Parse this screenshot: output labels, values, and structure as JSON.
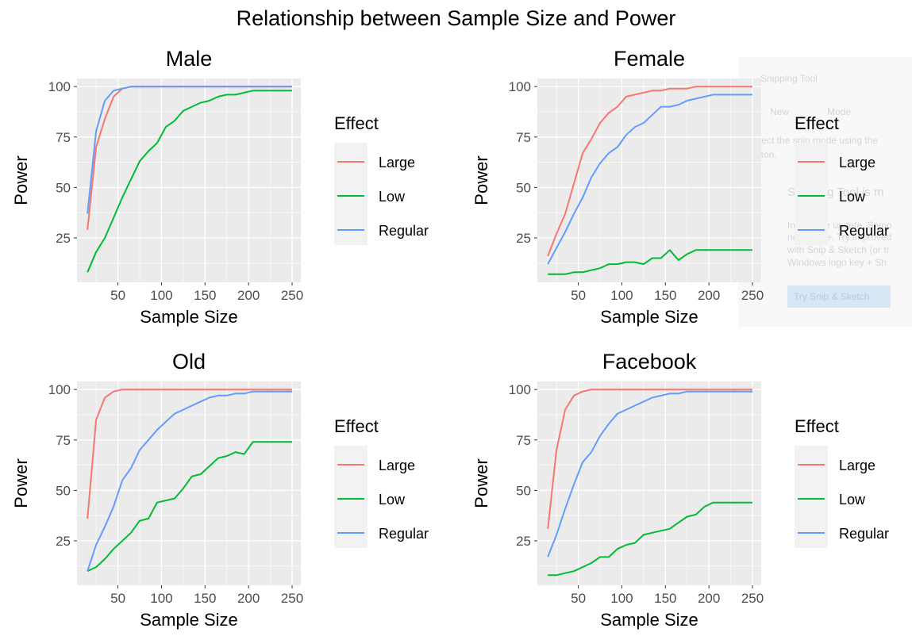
{
  "title": "Relationship between Sample Size and Power",
  "background_window": {
    "app_name": "Snipping Tool",
    "new_label": "New",
    "mode_label": "Mode",
    "line1": "Select the snip mode using the",
    "line2": "button.",
    "heading": "Snipping Tool is m",
    "body1": "In a future update, Snipp",
    "body2": "new home. Try improved",
    "body3": "with Snip & Sketch (or tr",
    "body4": "Windows logo key + Sh",
    "button_label": "Try Snip & Sketch"
  },
  "colors": {
    "Large": "#F8766D",
    "Low": "#00BA38",
    "Regular": "#619CFF"
  },
  "chart_data": [
    {
      "type": "line",
      "title": "Male",
      "xlabel": "Sample Size",
      "ylabel": "Power",
      "xlim": [
        3,
        260
      ],
      "ylim": [
        3,
        104
      ],
      "xticks": [
        50,
        100,
        150,
        200,
        250
      ],
      "yticks": [
        25,
        50,
        75,
        100
      ],
      "grid": true,
      "legend": {
        "title": "Effect",
        "position": "right"
      },
      "x": [
        15,
        25,
        35,
        45,
        55,
        65,
        75,
        85,
        95,
        105,
        115,
        125,
        135,
        145,
        155,
        165,
        175,
        185,
        195,
        205,
        215,
        225,
        235,
        245,
        250
      ],
      "series": [
        {
          "name": "Large",
          "values": [
            29,
            70,
            84,
            95,
            99,
            100,
            100,
            100,
            100,
            100,
            100,
            100,
            100,
            100,
            100,
            100,
            100,
            100,
            100,
            100,
            100,
            100,
            100,
            100,
            100
          ]
        },
        {
          "name": "Low",
          "values": [
            8,
            18,
            25,
            35,
            45,
            54,
            63,
            68,
            72,
            80,
            83,
            88,
            90,
            92,
            93,
            95,
            96,
            96,
            97,
            98,
            98,
            98,
            98,
            98,
            98
          ]
        },
        {
          "name": "Regular",
          "values": [
            37,
            78,
            93,
            98,
            99,
            100,
            100,
            100,
            100,
            100,
            100,
            100,
            100,
            100,
            100,
            100,
            100,
            100,
            100,
            100,
            100,
            100,
            100,
            100,
            100
          ]
        }
      ]
    },
    {
      "type": "line",
      "title": "Female",
      "xlabel": "Sample Size",
      "ylabel": "Power",
      "xlim": [
        3,
        260
      ],
      "ylim": [
        3,
        104
      ],
      "xticks": [
        50,
        100,
        150,
        200,
        250
      ],
      "yticks": [
        25,
        50,
        75,
        100
      ],
      "grid": true,
      "legend": {
        "title": "Effect",
        "position": "right"
      },
      "x": [
        15,
        25,
        35,
        45,
        55,
        65,
        75,
        85,
        95,
        105,
        115,
        125,
        135,
        145,
        155,
        165,
        175,
        185,
        195,
        205,
        215,
        225,
        235,
        245,
        250
      ],
      "series": [
        {
          "name": "Large",
          "values": [
            16,
            27,
            37,
            52,
            67,
            74,
            82,
            87,
            90,
            95,
            96,
            97,
            98,
            98,
            99,
            99,
            99,
            100,
            100,
            100,
            100,
            100,
            100,
            100,
            100
          ]
        },
        {
          "name": "Low",
          "values": [
            7,
            7,
            7,
            8,
            8,
            9,
            10,
            12,
            12,
            13,
            13,
            12,
            15,
            15,
            19,
            14,
            17,
            19,
            19,
            19,
            19,
            19,
            19,
            19,
            19
          ]
        },
        {
          "name": "Regular",
          "values": [
            12,
            20,
            28,
            37,
            45,
            55,
            62,
            67,
            70,
            76,
            80,
            82,
            86,
            90,
            90,
            91,
            93,
            94,
            95,
            96,
            96,
            96,
            96,
            96,
            96
          ]
        }
      ]
    },
    {
      "type": "line",
      "title": "Old",
      "xlabel": "Sample Size",
      "ylabel": "Power",
      "xlim": [
        3,
        260
      ],
      "ylim": [
        3,
        104
      ],
      "xticks": [
        50,
        100,
        150,
        200,
        250
      ],
      "yticks": [
        25,
        50,
        75,
        100
      ],
      "grid": true,
      "legend": {
        "title": "Effect",
        "position": "right"
      },
      "x": [
        15,
        25,
        35,
        45,
        55,
        65,
        75,
        85,
        95,
        105,
        115,
        125,
        135,
        145,
        155,
        165,
        175,
        185,
        195,
        205,
        215,
        225,
        235,
        245,
        250
      ],
      "series": [
        {
          "name": "Large",
          "values": [
            36,
            85,
            96,
            99,
            100,
            100,
            100,
            100,
            100,
            100,
            100,
            100,
            100,
            100,
            100,
            100,
            100,
            100,
            100,
            100,
            100,
            100,
            100,
            100,
            100
          ]
        },
        {
          "name": "Low",
          "values": [
            10,
            12,
            16,
            21,
            25,
            29,
            35,
            36,
            44,
            45,
            46,
            51,
            57,
            58,
            62,
            66,
            67,
            69,
            68,
            74,
            74,
            74,
            74,
            74,
            74
          ]
        },
        {
          "name": "Regular",
          "values": [
            10,
            23,
            32,
            42,
            55,
            61,
            70,
            75,
            80,
            84,
            88,
            90,
            92,
            94,
            96,
            97,
            97,
            98,
            98,
            99,
            99,
            99,
            99,
            99,
            99
          ]
        }
      ]
    },
    {
      "type": "line",
      "title": "Facebook",
      "xlabel": "Sample Size",
      "ylabel": "Power",
      "xlim": [
        3,
        260
      ],
      "ylim": [
        3,
        104
      ],
      "xticks": [
        50,
        100,
        150,
        200,
        250
      ],
      "yticks": [
        25,
        50,
        75,
        100
      ],
      "grid": true,
      "legend": {
        "title": "Effect",
        "position": "right"
      },
      "x": [
        15,
        25,
        35,
        45,
        55,
        65,
        75,
        85,
        95,
        105,
        115,
        125,
        135,
        145,
        155,
        165,
        175,
        185,
        195,
        205,
        215,
        225,
        235,
        245,
        250
      ],
      "series": [
        {
          "name": "Large",
          "values": [
            31,
            70,
            90,
            97,
            99,
            100,
            100,
            100,
            100,
            100,
            100,
            100,
            100,
            100,
            100,
            100,
            100,
            100,
            100,
            100,
            100,
            100,
            100,
            100,
            100
          ]
        },
        {
          "name": "Low",
          "values": [
            8,
            8,
            9,
            10,
            12,
            14,
            17,
            17,
            21,
            23,
            24,
            28,
            29,
            30,
            31,
            34,
            37,
            38,
            42,
            44,
            44,
            44,
            44,
            44,
            44
          ]
        },
        {
          "name": "Regular",
          "values": [
            17,
            28,
            41,
            53,
            64,
            69,
            77,
            83,
            88,
            90,
            92,
            94,
            96,
            97,
            98,
            98,
            99,
            99,
            99,
            99,
            99,
            99,
            99,
            99,
            99
          ]
        }
      ]
    }
  ]
}
